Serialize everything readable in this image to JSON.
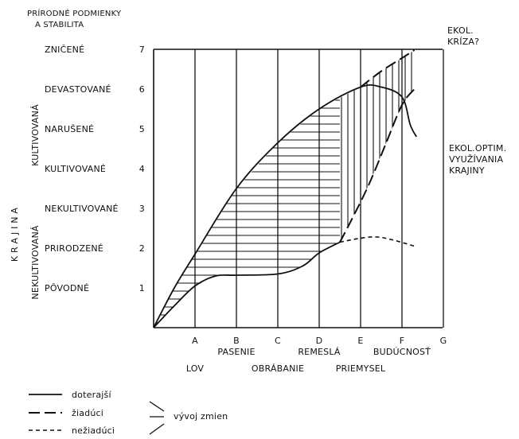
{
  "title": {
    "line1": "PRÍRODNÉ PODMIENKY",
    "line2": "A STABILITA"
  },
  "side_labels": {
    "krajina": "K R A J I N A",
    "kultivovana": "KULTIVOVANÁ",
    "nekultivovana": "NEKULTIVOVANÁ"
  },
  "chart_data": {
    "type": "line",
    "ylim": [
      0,
      7
    ],
    "y_tick_values": [
      "1",
      "2",
      "3",
      "4",
      "5",
      "6",
      "7"
    ],
    "y_category_labels": [
      "PÔVODNÉ",
      "PRIRODZENÉ",
      "NEKULTIVOVANÉ",
      "KULTIVOVANÉ",
      "NARUŠENÉ",
      "DEVASTOVANÉ",
      "ZNIČENÉ"
    ],
    "x_categories": [
      "A",
      "B",
      "C",
      "D",
      "E",
      "F",
      "G"
    ],
    "x_epochs_upper": [
      {
        "at": "B",
        "label": "PASENIE"
      },
      {
        "at": "D",
        "label": "REMESLÁ"
      },
      {
        "at": "F",
        "label": "BUDÚCNOSŤ"
      }
    ],
    "x_epochs_lower": [
      {
        "at": "A",
        "label": "LOV"
      },
      {
        "at": "C",
        "label": "OBRÁBANIE"
      },
      {
        "at": "E",
        "label": "PRIEMYSEL"
      }
    ],
    "series": [
      {
        "style": "solid",
        "points": [
          [
            0,
            0
          ],
          [
            0.5,
            1.0
          ],
          [
            1.0,
            1.85
          ],
          [
            2.0,
            3.5
          ],
          [
            3.0,
            4.65
          ],
          [
            4.0,
            5.5
          ],
          [
            5.0,
            6.05
          ],
          [
            5.5,
            6.05
          ],
          [
            6.0,
            5.8
          ],
          [
            6.2,
            5.1
          ],
          [
            6.35,
            4.8
          ]
        ]
      },
      {
        "style": "solid",
        "points": [
          [
            0,
            0
          ],
          [
            0.5,
            0.55
          ],
          [
            1.0,
            1.05
          ],
          [
            1.5,
            1.3
          ],
          [
            2.0,
            1.32
          ],
          [
            3.0,
            1.35
          ],
          [
            3.6,
            1.55
          ],
          [
            4.0,
            1.88
          ],
          [
            4.5,
            2.15
          ]
        ]
      },
      {
        "style": "dotted",
        "points": [
          [
            4.5,
            2.15
          ],
          [
            5.0,
            2.25
          ],
          [
            5.4,
            2.28
          ],
          [
            5.8,
            2.2
          ],
          [
            6.3,
            2.05
          ]
        ]
      },
      {
        "style": "dashed",
        "points": [
          [
            5.0,
            6.05
          ],
          [
            5.5,
            6.45
          ],
          [
            6.0,
            6.78
          ],
          [
            6.3,
            6.98
          ]
        ]
      },
      {
        "style": "dashed",
        "points": [
          [
            4.5,
            2.15
          ],
          [
            4.8,
            2.75
          ],
          [
            5.2,
            3.6
          ],
          [
            5.6,
            4.6
          ],
          [
            6.0,
            5.6
          ],
          [
            6.3,
            6.0
          ]
        ]
      }
    ],
    "annotations": [
      {
        "line1": "EKOL.",
        "line2": "KRÍZA?"
      },
      {
        "line1": "EKOL.OPTIM.",
        "line2": "VYUŽÍVANIA",
        "line3": "KRAJINY"
      }
    ]
  },
  "legend": {
    "items": [
      {
        "style": "solid",
        "label": "doterajší"
      },
      {
        "style": "dashed",
        "label": "žiadúci"
      },
      {
        "style": "dotted",
        "label": "nežiadúci"
      }
    ],
    "group_label": "vývoj  zmien"
  }
}
